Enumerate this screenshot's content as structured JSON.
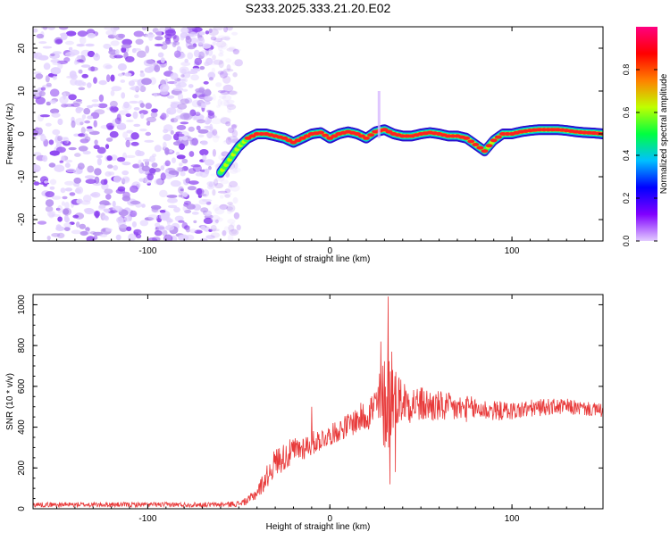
{
  "title": "S233.2025.333.21.20.E02",
  "colors": {
    "snr_line": "#e83a3a",
    "ridge": "#ff2020",
    "noise_light": "#e2d2ff",
    "noise_mid": "#b48cf0",
    "noise_dark": "#8a3ff0"
  },
  "chart_data": [
    {
      "type": "heatmap",
      "xlabel": "Height of straight line (km)",
      "ylabel": "Frequency (Hz)",
      "xlim": [
        -163,
        150
      ],
      "ylim": [
        -25,
        25
      ],
      "xticks": [
        -100,
        0,
        100
      ],
      "yticks": [
        -20,
        -10,
        0,
        10,
        20
      ],
      "colorbar": {
        "label": "Normalized spectral amplitude",
        "range": [
          0,
          1
        ],
        "ticks": [
          "0.0",
          "0.2",
          "0.4",
          "0.6",
          "0.8"
        ],
        "stops": [
          "#e3ccff",
          "#8000ff",
          "#0000ff",
          "#00c0ff",
          "#00ff40",
          "#c0ff00",
          "#ff8000",
          "#ff0000",
          "#ff0080"
        ]
      },
      "noise_region_x": [
        -163,
        -50
      ],
      "ridge": {
        "x": [
          -60,
          -55,
          -50,
          -45,
          -40,
          -35,
          -30,
          -25,
          -20,
          -15,
          -10,
          -5,
          0,
          5,
          10,
          15,
          20,
          25,
          30,
          35,
          40,
          45,
          50,
          55,
          60,
          65,
          70,
          75,
          80,
          85,
          90,
          95,
          100,
          105,
          110,
          115,
          120,
          125,
          130,
          135,
          140,
          145,
          150
        ],
        "y": [
          -9,
          -6,
          -3,
          -1,
          0,
          0,
          -0.5,
          -1,
          -2,
          -1,
          0,
          0.3,
          -1,
          0,
          0.5,
          0,
          -1,
          0.5,
          1,
          0,
          -0.5,
          -0.5,
          0,
          0.3,
          0,
          -0.5,
          -0.5,
          -1,
          -2.5,
          -4,
          -1.5,
          0,
          0,
          0.5,
          0.8,
          1,
          1,
          1,
          0.8,
          0.5,
          0.3,
          0.2,
          0
        ]
      }
    },
    {
      "type": "line",
      "xlabel": "Height of straight line (km)",
      "ylabel": "SNR (10 * v/v)",
      "xlim": [
        -163,
        150
      ],
      "ylim": [
        0,
        1050
      ],
      "xticks": [
        -100,
        0,
        100
      ],
      "yticks": [
        0,
        200,
        400,
        600,
        800,
        1000
      ],
      "envelope": {
        "x": [
          -163,
          -60,
          -50,
          -45,
          -40,
          -35,
          -30,
          -20,
          -10,
          0,
          10,
          20,
          25,
          30,
          33,
          35,
          40,
          50,
          60,
          70,
          80,
          90,
          100,
          110,
          120,
          130,
          140,
          150
        ],
        "y": [
          20,
          20,
          25,
          40,
          80,
          150,
          230,
          280,
          320,
          360,
          410,
          460,
          500,
          520,
          540,
          560,
          530,
          510,
          500,
          490,
          490,
          480,
          480,
          490,
          500,
          500,
          490,
          480
        ],
        "spread": [
          12,
          12,
          15,
          20,
          35,
          55,
          70,
          70,
          60,
          50,
          60,
          80,
          110,
          240,
          280,
          150,
          110,
          90,
          80,
          70,
          60,
          50,
          45,
          45,
          40,
          40,
          35,
          35
        ]
      },
      "spikes": [
        {
          "x": -10,
          "y": 500
        },
        {
          "x": 28,
          "y": 820
        },
        {
          "x": 32,
          "y": 1040
        },
        {
          "x": 33,
          "y": 120
        },
        {
          "x": 34,
          "y": 770
        },
        {
          "x": 36,
          "y": 180
        }
      ]
    }
  ]
}
